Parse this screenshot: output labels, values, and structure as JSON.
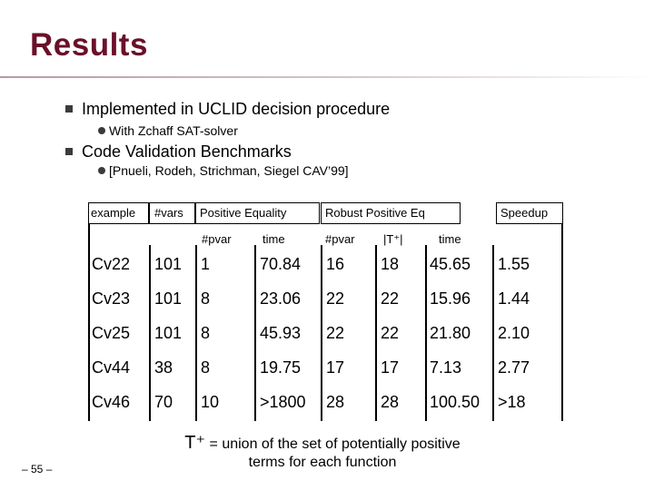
{
  "slide": {
    "title": "Results",
    "bullets": [
      {
        "text": "Implemented in UCLID decision procedure",
        "sub": "With Zchaff SAT-solver"
      },
      {
        "text": "Code Validation Benchmarks",
        "sub": "[Pnueli, Rodeh, Strichman, Siegel CAV’99]"
      }
    ],
    "table": {
      "groups": {
        "example": "example",
        "vars": "#vars",
        "pos_eq": "Positive Equality",
        "robust": "Robust Positive Eq",
        "speedup": "Speedup"
      },
      "subheaders": {
        "pe_pvar": "#pvar",
        "pe_time": "time",
        "rp_pvar": "#pvar",
        "rp_tplus": "|T⁺|",
        "rp_time": "time"
      },
      "rows": [
        {
          "example": "Cv22",
          "vars": "101",
          "pe_pvar": "1",
          "pe_time": "70.84",
          "rp_pvar": "16",
          "rp_tplus": "18",
          "rp_time": "45.65",
          "speedup": "1.55"
        },
        {
          "example": "Cv23",
          "vars": "101",
          "pe_pvar": "8",
          "pe_time": "23.06",
          "rp_pvar": "22",
          "rp_tplus": "22",
          "rp_time": "15.96",
          "speedup": "1.44"
        },
        {
          "example": "Cv25",
          "vars": "101",
          "pe_pvar": "8",
          "pe_time": "45.93",
          "rp_pvar": "22",
          "rp_tplus": "22",
          "rp_time": "21.80",
          "speedup": "2.10"
        },
        {
          "example": "Cv44",
          "vars": "38",
          "pe_pvar": "8",
          "pe_time": "19.75",
          "rp_pvar": "17",
          "rp_tplus": "17",
          "rp_time": "7.13",
          "speedup": "2.77"
        },
        {
          "example": "Cv46",
          "vars": "70",
          "pe_pvar": "10",
          "pe_time": ">1800",
          "rp_pvar": "28",
          "rp_tplus": "28",
          "rp_time": "100.50",
          "speedup": ">18"
        }
      ]
    },
    "footnote": {
      "t_plus": "T⁺",
      "line1": " = union of the set of potentially positive",
      "line2": "terms  for each function"
    },
    "page_number": "– 55 –",
    "colors": {
      "title": "#6b0f2a",
      "bullet": "#3b3b3b"
    }
  }
}
